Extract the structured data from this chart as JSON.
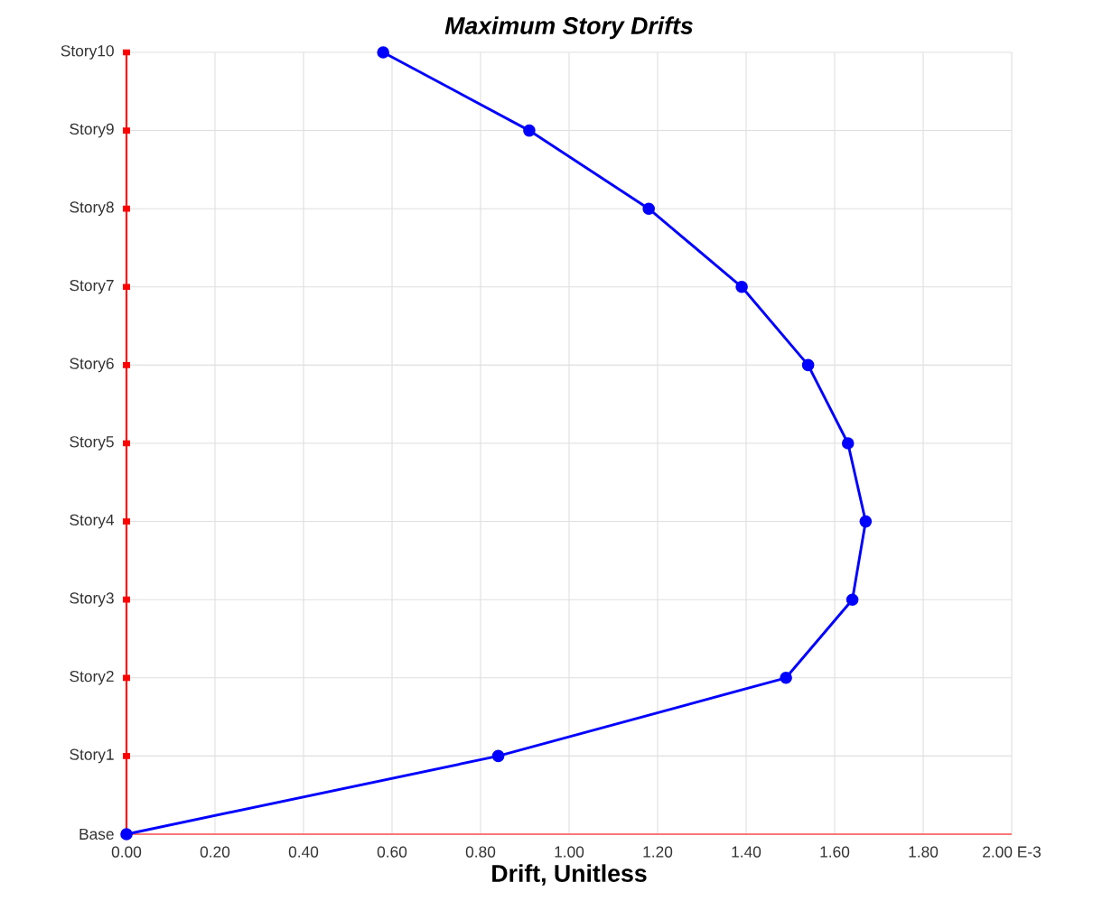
{
  "chart_data": {
    "type": "line",
    "orientation": "horizontal",
    "title": "Maximum Story Drifts",
    "xlabel": "Drift, Unitless",
    "categories": [
      "Story10",
      "Story9",
      "Story8",
      "Story7",
      "Story6",
      "Story5",
      "Story4",
      "Story3",
      "Story2",
      "Story1",
      "Base"
    ],
    "values": [
      0.58,
      0.91,
      1.18,
      1.39,
      1.54,
      1.63,
      1.67,
      1.64,
      1.49,
      0.84,
      0.0
    ],
    "color": "#0000ff",
    "xlim": [
      0,
      2
    ],
    "xticks": [
      {
        "value": 0,
        "label": "0.00"
      },
      {
        "value": 0.2,
        "label": "0.20"
      },
      {
        "value": 0.4,
        "label": "0.40"
      },
      {
        "value": 0.6,
        "label": "0.60"
      },
      {
        "value": 0.8,
        "label": "0.80"
      },
      {
        "value": 1.0,
        "label": "1.00"
      },
      {
        "value": 1.2,
        "label": "1.20"
      },
      {
        "value": 1.4,
        "label": "1.40"
      },
      {
        "value": 1.6,
        "label": "1.60"
      },
      {
        "value": 1.8,
        "label": "1.80"
      },
      {
        "value": 2.0,
        "label": "2.00 E-3"
      }
    ],
    "grid": true,
    "marker": "circle",
    "line_style": "solid"
  }
}
